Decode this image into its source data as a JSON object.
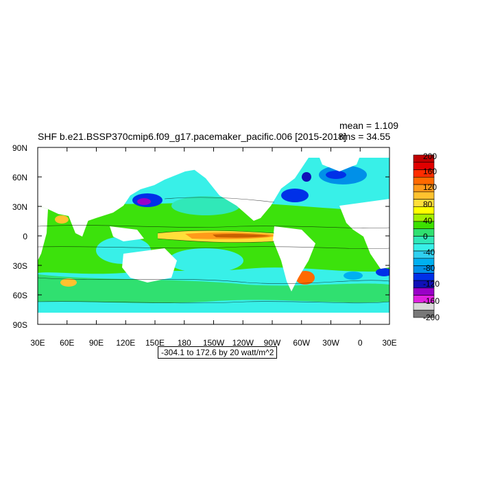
{
  "title": "SHF b.e21.BSSP370cmip6.f09_g17.pacemaker_pacific.006 [2015-2018]",
  "stats": {
    "mean": "mean = 1.109",
    "rms": "rms = 34.55"
  },
  "range_label": "-304.1 to 172.6 by 20 watt/m^2",
  "lat_labels": [
    "90N",
    "60N",
    "30N",
    "0",
    "30S",
    "60S",
    "90S"
  ],
  "lon_labels": [
    "30E",
    "60E",
    "90E",
    "120E",
    "150E",
    "180",
    "150W",
    "120W",
    "90W",
    "60W",
    "30W",
    "0",
    "30E"
  ],
  "colorbar": {
    "labels": [
      "200",
      "160",
      "120",
      "80",
      "40",
      "0",
      "-40",
      "-80",
      "-120",
      "-160",
      "-200"
    ],
    "colors": [
      "#c00000",
      "#e10000",
      "#ff2d00",
      "#ff6a00",
      "#ff9a1a",
      "#ffc22f",
      "#ffdf3a",
      "#ffff00",
      "#a4f000",
      "#3ce000",
      "#30e070",
      "#30e8b8",
      "#38f0e8",
      "#30d0f0",
      "#00b0f0",
      "#0090e8",
      "#0030e8",
      "#1010b8",
      "#9a00c8",
      "#e020e0",
      "#d8d8d8",
      "#787878"
    ]
  },
  "colors": {
    "land": "#ffffff",
    "ocean_base": "#38f0e8"
  }
}
